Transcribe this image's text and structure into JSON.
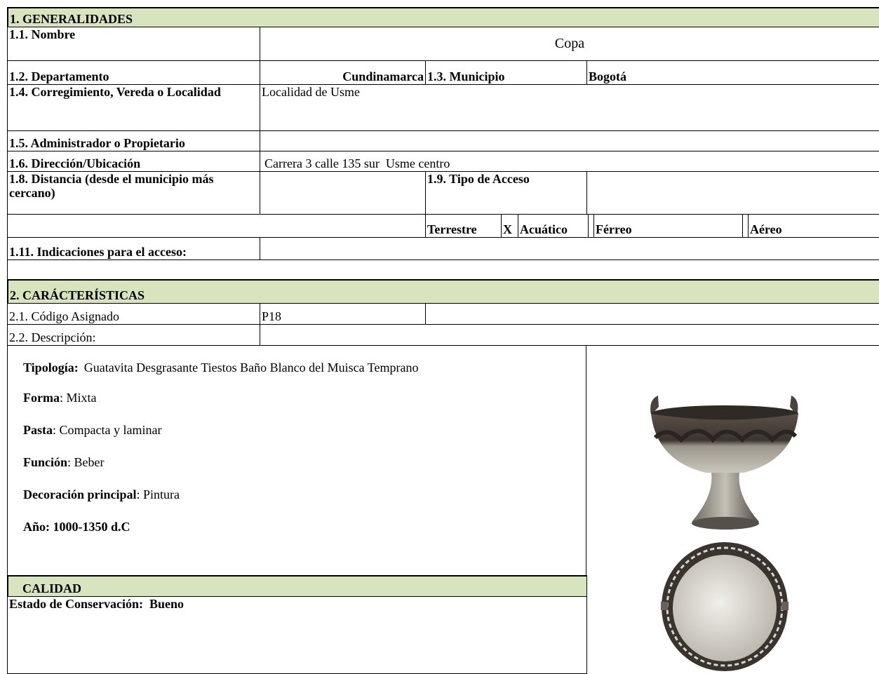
{
  "section1": {
    "title": "1. GENERALIDADES",
    "nombre": {
      "label": "1.1. Nombre",
      "value": "Copa"
    },
    "departamento": {
      "label": "1.2. Departamento",
      "value": "Cundinamarca"
    },
    "municipio": {
      "label": "1.3. Municipio",
      "value": "Bogotá"
    },
    "localidad": {
      "label": "1.4. Corregimiento, Vereda o Localidad",
      "value": "Localidad de Usme"
    },
    "administrador": {
      "label": "1.5. Administrador o Propietario"
    },
    "direccion": {
      "label": "1.6. Dirección/Ubicación",
      "value": "Carrera 3 calle 135 sur  Usme centro"
    },
    "distancia": {
      "label": "1.8. Distancia (desde el municipio más cercano)"
    },
    "tipo_acceso": {
      "label": "1.9. Tipo de Acceso",
      "options": [
        "Terrestre",
        "Acuático",
        "Férreo",
        "Aéreo"
      ],
      "mark": "X"
    },
    "indicaciones": {
      "label": "1.11. Indicaciones para el acceso:"
    }
  },
  "section2": {
    "title": "2. CARÁCTERÍSTICAS",
    "codigo": {
      "label": "2.1. Código Asignado",
      "value": "P18"
    },
    "descripcion": {
      "label": "2.2. Descripción:"
    },
    "details": [
      {
        "label": "Tipología:",
        "value": "Guatavita Desgrasante Tiestos Baño Blanco del Muisca Temprano"
      },
      {
        "label": "Forma",
        "value": ": Mixta"
      },
      {
        "label": "Pasta",
        "value": ": Compacta y laminar"
      },
      {
        "label": "Función",
        "value": ": Beber"
      },
      {
        "label": "Decoración principal",
        "value": ": Pintura"
      },
      {
        "label": "Año: 1000-1350 d.C"
      }
    ]
  },
  "calidad": {
    "title": "CALIDAD",
    "estado": "Estado de Conservación:  Bueno"
  }
}
